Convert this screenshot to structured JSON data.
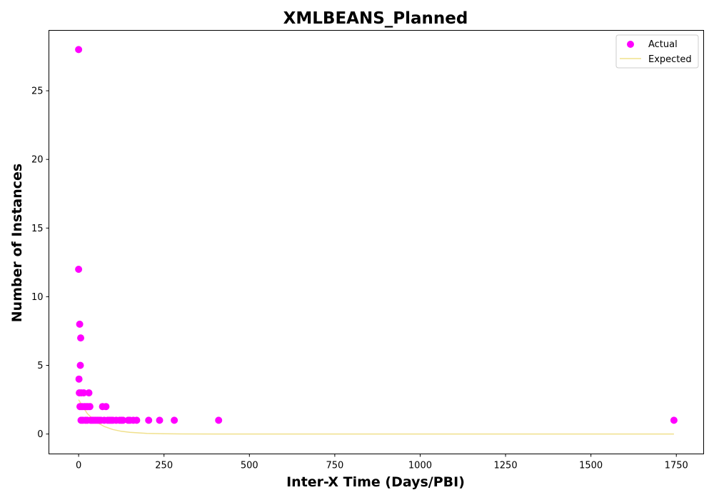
{
  "chart_data": {
    "type": "scatter",
    "title": "XMLBEANS_Planned",
    "xlabel": "Inter-X Time (Days/PBI)",
    "ylabel": "Number of Instances",
    "xlim": [
      -87,
      1830
    ],
    "ylim": [
      -1.45,
      29.4
    ],
    "xticks": [
      {
        "value": 0,
        "label": "0"
      },
      {
        "value": 250,
        "label": "250"
      },
      {
        "value": 500,
        "label": "500"
      },
      {
        "value": 750,
        "label": "750"
      },
      {
        "value": 1000,
        "label": "1000"
      },
      {
        "value": 1250,
        "label": "1250"
      },
      {
        "value": 1500,
        "label": "1500"
      },
      {
        "value": 1750,
        "label": "1750"
      }
    ],
    "yticks": [
      {
        "value": 0,
        "label": "0"
      },
      {
        "value": 5,
        "label": "5"
      },
      {
        "value": 10,
        "label": "10"
      },
      {
        "value": 15,
        "label": "15"
      },
      {
        "value": 20,
        "label": "20"
      },
      {
        "value": 25,
        "label": "25"
      }
    ],
    "grid": false,
    "legend_position": "top-right",
    "series": [
      {
        "name": "Actual",
        "kind": "scatter",
        "color": "#ff00ff",
        "x": [
          0,
          0,
          1,
          2,
          3,
          4,
          5,
          6,
          7,
          8,
          10,
          12,
          15,
          17,
          20,
          22,
          25,
          27,
          30,
          33,
          35,
          40,
          45,
          50,
          55,
          60,
          65,
          70,
          75,
          80,
          85,
          90,
          95,
          100,
          110,
          120,
          125,
          130,
          145,
          150,
          160,
          170,
          205,
          237,
          280,
          410,
          1743
        ],
        "y": [
          28,
          12,
          4,
          3,
          8,
          2,
          5,
          7,
          1,
          3,
          2,
          1,
          3,
          2,
          1,
          2,
          1,
          2,
          3,
          2,
          1,
          1,
          1,
          1,
          1,
          1,
          1,
          2,
          1,
          2,
          1,
          1,
          1,
          1,
          1,
          1,
          1,
          1,
          1,
          1,
          1,
          1,
          1,
          1,
          1,
          1,
          1
        ]
      },
      {
        "name": "Expected",
        "kind": "line",
        "color": "#f0e08c",
        "x": [
          0,
          25,
          50,
          75,
          100,
          125,
          150,
          200,
          250,
          300,
          400,
          500,
          750,
          1000,
          1250,
          1500,
          1743
        ],
        "y": [
          2.5,
          1.5,
          0.9,
          0.55,
          0.33,
          0.2,
          0.12,
          0.05,
          0.02,
          0.008,
          0.002,
          0,
          0,
          0,
          0,
          0,
          0
        ]
      }
    ]
  }
}
